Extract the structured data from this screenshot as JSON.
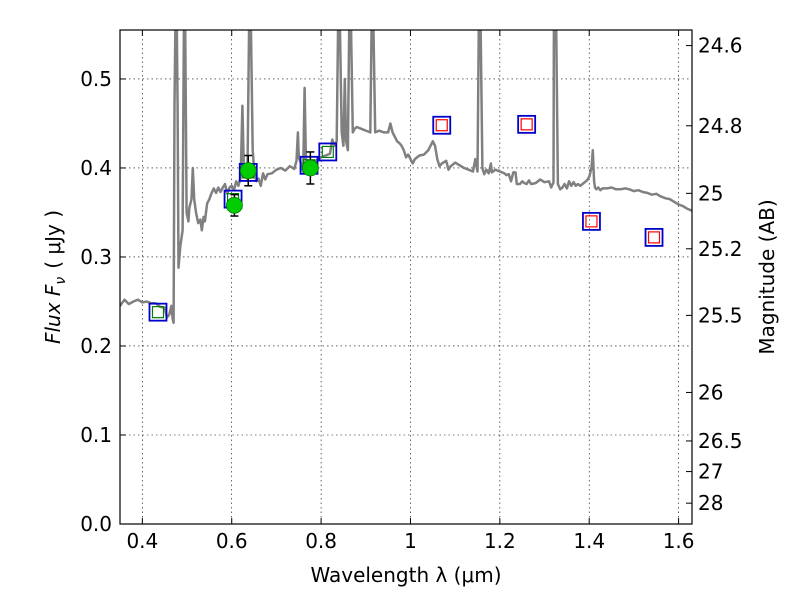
{
  "chart_data": {
    "type": "scatter",
    "xlabel": "Wavelength  λ (μm)",
    "ylabel": "Flux  F",
    "ylabel_sub": "ν",
    "ylabel_unit": "( μJy )",
    "ylabel_right": "Magnitude (AB)",
    "xlim": [
      0.35,
      1.63
    ],
    "ylim": [
      0.0,
      0.555
    ],
    "grid": true,
    "x_ticks": [
      0.4,
      0.6,
      0.8,
      1.0,
      1.2,
      1.4,
      1.6
    ],
    "x_tick_labels": [
      "0.4",
      "0.6",
      "0.8",
      "1",
      "1.2",
      "1.4",
      "1.6"
    ],
    "y_ticks": [
      0.0,
      0.1,
      0.2,
      0.3,
      0.4,
      0.5
    ],
    "y_tick_labels": [
      "0.0",
      "0.1",
      "0.2",
      "0.3",
      "0.4",
      "0.5"
    ],
    "right_ticks": [
      {
        "label": "24.6",
        "flux": 0.5375
      },
      {
        "label": "24.8",
        "flux": 0.4474
      },
      {
        "label": "25",
        "flux": 0.3715
      },
      {
        "label": "25.2",
        "flux": 0.3092
      },
      {
        "label": "25.5",
        "flux": 0.2344
      },
      {
        "label": "26",
        "flux": 0.1478
      },
      {
        "label": "26.5",
        "flux": 0.0933
      },
      {
        "label": "27",
        "flux": 0.0589
      },
      {
        "label": "28",
        "flux": 0.0234
      }
    ],
    "series": [
      {
        "kind": "line",
        "color": "#808080",
        "points": [
          [
            0.35,
            0.245
          ],
          [
            0.36,
            0.252
          ],
          [
            0.37,
            0.247
          ],
          [
            0.38,
            0.25
          ],
          [
            0.39,
            0.252
          ],
          [
            0.4,
            0.249
          ],
          [
            0.41,
            0.25
          ],
          [
            0.42,
            0.248
          ],
          [
            0.43,
            0.248
          ],
          [
            0.44,
            0.244
          ],
          [
            0.45,
            0.243
          ],
          [
            0.455,
            0.232
          ],
          [
            0.46,
            0.235
          ],
          [
            0.465,
            0.245
          ],
          [
            0.468,
            0.23
          ],
          [
            0.47,
            0.226
          ],
          [
            0.472,
            0.47
          ],
          [
            0.474,
            0.56
          ],
          [
            0.477,
            0.56
          ],
          [
            0.479,
            0.47
          ],
          [
            0.481,
            0.288
          ],
          [
            0.485,
            0.312
          ],
          [
            0.49,
            0.33
          ],
          [
            0.493,
            0.56
          ],
          [
            0.496,
            0.56
          ],
          [
            0.499,
            0.35
          ],
          [
            0.503,
            0.34
          ],
          [
            0.505,
            0.355
          ],
          [
            0.51,
            0.365
          ],
          [
            0.513,
            0.4
          ],
          [
            0.516,
            0.365
          ],
          [
            0.52,
            0.35
          ],
          [
            0.525,
            0.338
          ],
          [
            0.53,
            0.342
          ],
          [
            0.533,
            0.33
          ],
          [
            0.537,
            0.345
          ],
          [
            0.54,
            0.34
          ],
          [
            0.545,
            0.36
          ],
          [
            0.55,
            0.365
          ],
          [
            0.555,
            0.372
          ],
          [
            0.56,
            0.377
          ],
          [
            0.565,
            0.372
          ],
          [
            0.57,
            0.378
          ],
          [
            0.575,
            0.373
          ],
          [
            0.58,
            0.378
          ],
          [
            0.585,
            0.382
          ],
          [
            0.59,
            0.371
          ],
          [
            0.595,
            0.378
          ],
          [
            0.6,
            0.38
          ],
          [
            0.605,
            0.375
          ],
          [
            0.61,
            0.385
          ],
          [
            0.615,
            0.38
          ],
          [
            0.62,
            0.39
          ],
          [
            0.624,
            0.47
          ],
          [
            0.627,
            0.4
          ],
          [
            0.63,
            0.392
          ],
          [
            0.635,
            0.388
          ],
          [
            0.639,
            0.56
          ],
          [
            0.643,
            0.56
          ],
          [
            0.647,
            0.42
          ],
          [
            0.65,
            0.398
          ],
          [
            0.655,
            0.385
          ],
          [
            0.66,
            0.388
          ],
          [
            0.665,
            0.38
          ],
          [
            0.67,
            0.394
          ],
          [
            0.675,
            0.387
          ],
          [
            0.68,
            0.393
          ],
          [
            0.69,
            0.394
          ],
          [
            0.7,
            0.398
          ],
          [
            0.71,
            0.4
          ],
          [
            0.72,
            0.397
          ],
          [
            0.73,
            0.402
          ],
          [
            0.74,
            0.399
          ],
          [
            0.745,
            0.408
          ],
          [
            0.748,
            0.44
          ],
          [
            0.75,
            0.412
          ],
          [
            0.755,
            0.405
          ],
          [
            0.76,
            0.396
          ],
          [
            0.763,
            0.49
          ],
          [
            0.766,
            0.41
          ],
          [
            0.77,
            0.408
          ],
          [
            0.78,
            0.404
          ],
          [
            0.79,
            0.409
          ],
          [
            0.8,
            0.412
          ],
          [
            0.81,
            0.414
          ],
          [
            0.82,
            0.416
          ],
          [
            0.825,
            0.432
          ],
          [
            0.83,
            0.425
          ],
          [
            0.835,
            0.43
          ],
          [
            0.838,
            0.56
          ],
          [
            0.842,
            0.56
          ],
          [
            0.846,
            0.44
          ],
          [
            0.85,
            0.425
          ],
          [
            0.853,
            0.5
          ],
          [
            0.856,
            0.43
          ],
          [
            0.86,
            0.42
          ],
          [
            0.863,
            0.56
          ],
          [
            0.867,
            0.56
          ],
          [
            0.871,
            0.44
          ],
          [
            0.875,
            0.444
          ],
          [
            0.88,
            0.446
          ],
          [
            0.89,
            0.444
          ],
          [
            0.9,
            0.442
          ],
          [
            0.91,
            0.44
          ],
          [
            0.913,
            0.56
          ],
          [
            0.917,
            0.56
          ],
          [
            0.921,
            0.44
          ],
          [
            0.93,
            0.442
          ],
          [
            0.94,
            0.44
          ],
          [
            0.95,
            0.44
          ],
          [
            0.955,
            0.45
          ],
          [
            0.96,
            0.44
          ],
          [
            0.97,
            0.43
          ],
          [
            0.975,
            0.428
          ],
          [
            0.98,
            0.425
          ],
          [
            0.985,
            0.42
          ],
          [
            0.99,
            0.412
          ],
          [
            0.995,
            0.415
          ],
          [
            1.0,
            0.41
          ],
          [
            1.005,
            0.405
          ],
          [
            1.01,
            0.41
          ],
          [
            1.02,
            0.414
          ],
          [
            1.03,
            0.415
          ],
          [
            1.04,
            0.42
          ],
          [
            1.05,
            0.43
          ],
          [
            1.055,
            0.425
          ],
          [
            1.06,
            0.41
          ],
          [
            1.065,
            0.402
          ],
          [
            1.07,
            0.405
          ],
          [
            1.08,
            0.408
          ],
          [
            1.085,
            0.398
          ],
          [
            1.09,
            0.402
          ],
          [
            1.1,
            0.406
          ],
          [
            1.11,
            0.403
          ],
          [
            1.12,
            0.4
          ],
          [
            1.13,
            0.398
          ],
          [
            1.14,
            0.396
          ],
          [
            1.145,
            0.41
          ],
          [
            1.15,
            0.396
          ],
          [
            1.153,
            0.56
          ],
          [
            1.157,
            0.56
          ],
          [
            1.161,
            0.4
          ],
          [
            1.165,
            0.393
          ],
          [
            1.17,
            0.398
          ],
          [
            1.175,
            0.394
          ],
          [
            1.18,
            0.405
          ],
          [
            1.182,
            0.395
          ],
          [
            1.19,
            0.398
          ],
          [
            1.2,
            0.396
          ],
          [
            1.21,
            0.394
          ],
          [
            1.215,
            0.392
          ],
          [
            1.22,
            0.393
          ],
          [
            1.225,
            0.385
          ],
          [
            1.23,
            0.395
          ],
          [
            1.235,
            0.395
          ],
          [
            1.238,
            0.382
          ],
          [
            1.245,
            0.382
          ],
          [
            1.25,
            0.385
          ],
          [
            1.255,
            0.383
          ],
          [
            1.26,
            0.382
          ],
          [
            1.265,
            0.386
          ],
          [
            1.27,
            0.382
          ],
          [
            1.28,
            0.383
          ],
          [
            1.29,
            0.387
          ],
          [
            1.3,
            0.384
          ],
          [
            1.31,
            0.385
          ],
          [
            1.315,
            0.378
          ],
          [
            1.32,
            0.384
          ],
          [
            1.321,
            0.56
          ],
          [
            1.326,
            0.56
          ],
          [
            1.33,
            0.382
          ],
          [
            1.335,
            0.376
          ],
          [
            1.34,
            0.378
          ],
          [
            1.345,
            0.382
          ],
          [
            1.35,
            0.377
          ],
          [
            1.355,
            0.385
          ],
          [
            1.36,
            0.38
          ],
          [
            1.365,
            0.384
          ],
          [
            1.37,
            0.38
          ],
          [
            1.375,
            0.382
          ],
          [
            1.38,
            0.38
          ],
          [
            1.385,
            0.382
          ],
          [
            1.39,
            0.384
          ],
          [
            1.395,
            0.386
          ],
          [
            1.4,
            0.39
          ],
          [
            1.405,
            0.4
          ],
          [
            1.408,
            0.42
          ],
          [
            1.411,
            0.385
          ],
          [
            1.413,
            0.378
          ],
          [
            1.416,
            0.376
          ],
          [
            1.42,
            0.378
          ],
          [
            1.425,
            0.375
          ],
          [
            1.43,
            0.377
          ],
          [
            1.44,
            0.377
          ],
          [
            1.45,
            0.378
          ],
          [
            1.46,
            0.376
          ],
          [
            1.47,
            0.376
          ],
          [
            1.48,
            0.377
          ],
          [
            1.49,
            0.376
          ],
          [
            1.5,
            0.374
          ],
          [
            1.51,
            0.375
          ],
          [
            1.52,
            0.373
          ],
          [
            1.53,
            0.372
          ],
          [
            1.54,
            0.37
          ],
          [
            1.55,
            0.371
          ],
          [
            1.56,
            0.368
          ],
          [
            1.57,
            0.366
          ],
          [
            1.58,
            0.365
          ],
          [
            1.59,
            0.362
          ],
          [
            1.6,
            0.359
          ],
          [
            1.61,
            0.357
          ],
          [
            1.62,
            0.354
          ],
          [
            1.63,
            0.352
          ]
        ]
      },
      {
        "kind": "model_squares",
        "points": [
          {
            "x": 0.435,
            "y": 0.238,
            "inner": "#008000"
          },
          {
            "x": 0.603,
            "y": 0.365,
            "inner": "#008000"
          },
          {
            "x": 0.637,
            "y": 0.395,
            "inner": "#008000"
          },
          {
            "x": 0.773,
            "y": 0.403,
            "inner": "#008000"
          },
          {
            "x": 0.815,
            "y": 0.418,
            "inner": "#008000"
          },
          {
            "x": 1.07,
            "y": 0.448,
            "inner": "#ff0000"
          },
          {
            "x": 1.26,
            "y": 0.449,
            "inner": "#ff0000"
          },
          {
            "x": 1.405,
            "y": 0.34,
            "inner": "#ff0000"
          },
          {
            "x": 1.545,
            "y": 0.322,
            "inner": "#ff0000"
          }
        ]
      },
      {
        "kind": "observed",
        "color": "#00cc00",
        "points": [
          {
            "x": 0.606,
            "y": 0.358,
            "err": 0.012
          },
          {
            "x": 0.637,
            "y": 0.397,
            "err": 0.017
          },
          {
            "x": 0.776,
            "y": 0.4,
            "err": 0.018
          }
        ]
      }
    ]
  }
}
